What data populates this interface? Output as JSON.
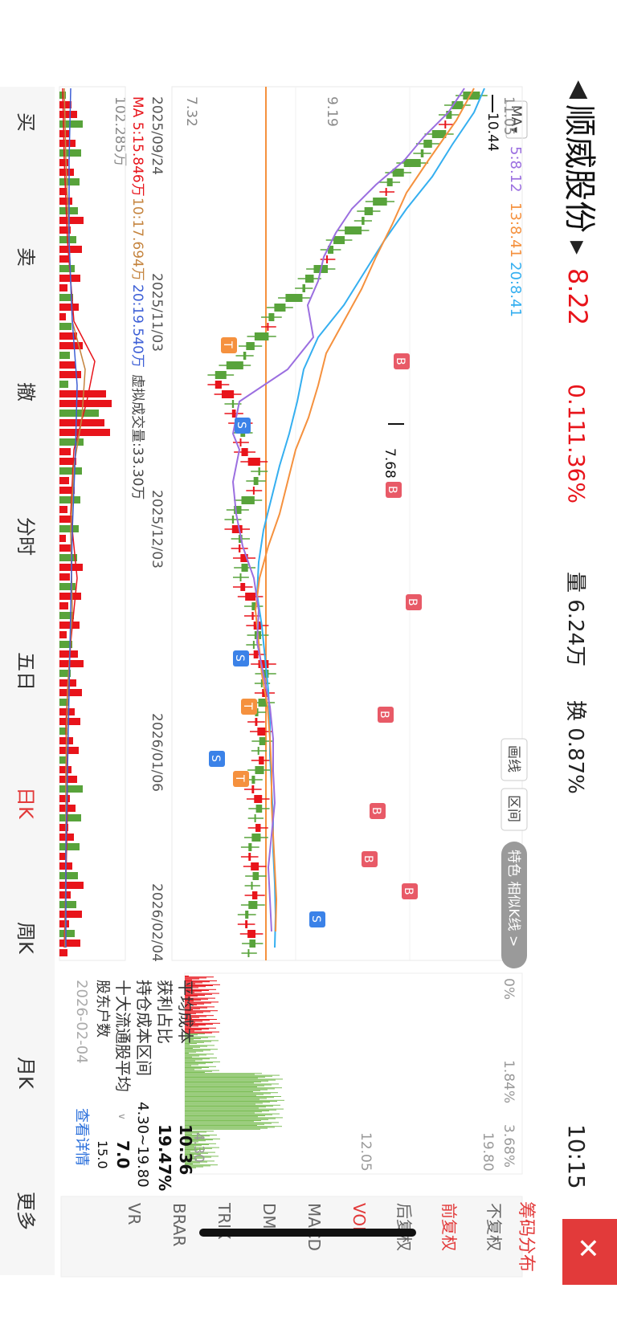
{
  "stock": {
    "name": "顺威股份",
    "price": "8.22",
    "change": "0.11",
    "change_pct": "1.36%",
    "volume": "量 6.24万",
    "turnover": "换 0.87%",
    "time": "10:15"
  },
  "ma": {
    "toggle": "MA",
    "ma5": "5:8.12",
    "ma13": "13:8.41",
    "ma20": "20:8.41"
  },
  "price_axis": {
    "high": "11.05",
    "mid": "9.19",
    "low": "7.32",
    "max_marker": "10.44",
    "min_marker": "7.68"
  },
  "date_ticks": [
    "2025/09/24",
    "2025/11/03",
    "2025/12/03",
    "2026/01/06",
    "2026/02/04"
  ],
  "volume_panel": {
    "ma_line": "MA 5:15.846万",
    "ma10": "10:17.694万",
    "ma20": "20:19.540万",
    "virtual": "虚拟成交量:33.30万",
    "axis_max": "102.285万"
  },
  "chip_tabs": {
    "drawing": "画线",
    "interval": "区间",
    "feature": "特色 相似K线 >"
  },
  "chip": {
    "pct_axis": [
      "0%",
      "1.84%",
      "3.68%"
    ],
    "price_axis": [
      "19.80",
      "12.05",
      "4.30"
    ],
    "avg_cost_label": "平均成本",
    "avg_cost": "10.36",
    "profit_label": "获利占比",
    "profit": "19.47%",
    "range_label": "持仓成本区间",
    "range": "4.30~19.80",
    "top10_label": "十大流通股平均",
    "top10": "7.0",
    "pending_label": "股东户数",
    "pending": "15.0",
    "date": "2026-02-04",
    "more_link": "查看详情"
  },
  "right_panel": {
    "title": "筹码分布",
    "options": [
      "不复权",
      "前复权",
      "后复权",
      "VOL",
      "MACD",
      "DMI",
      "TRIX",
      "BRAR",
      "VR"
    ],
    "selected": [
      "前复权",
      "VOL"
    ]
  },
  "bottom_tabs": [
    "买",
    "卖",
    "撤",
    "分时",
    "五日",
    "日K",
    "周K",
    "月K",
    "更多"
  ],
  "active_tab": "日K",
  "signals": {
    "buy": "B",
    "sell": "S",
    "t": "T"
  },
  "colors": {
    "up": "#e8141b",
    "down": "#58a33b",
    "ma5": "#9b6fe0",
    "ma13": "#f5913e",
    "ma20": "#35aff0",
    "accent": "#e23a3a"
  },
  "chart_data": {
    "type": "candlestick",
    "title": "",
    "xlabel": "",
    "ylabel": "",
    "x_ticks": [
      "2025/09/24",
      "2025/11/03",
      "2025/12/03",
      "2026/01/06",
      "2026/02/04"
    ],
    "ylim": [
      7.32,
      11.05
    ],
    "series": [
      {
        "name": "MA5",
        "last": 8.12
      },
      {
        "name": "MA13",
        "last": 8.41
      },
      {
        "name": "MA20",
        "last": 8.41
      }
    ],
    "note_values": {
      "max": 10.44,
      "min": 7.68,
      "reference": 8.22
    }
  }
}
